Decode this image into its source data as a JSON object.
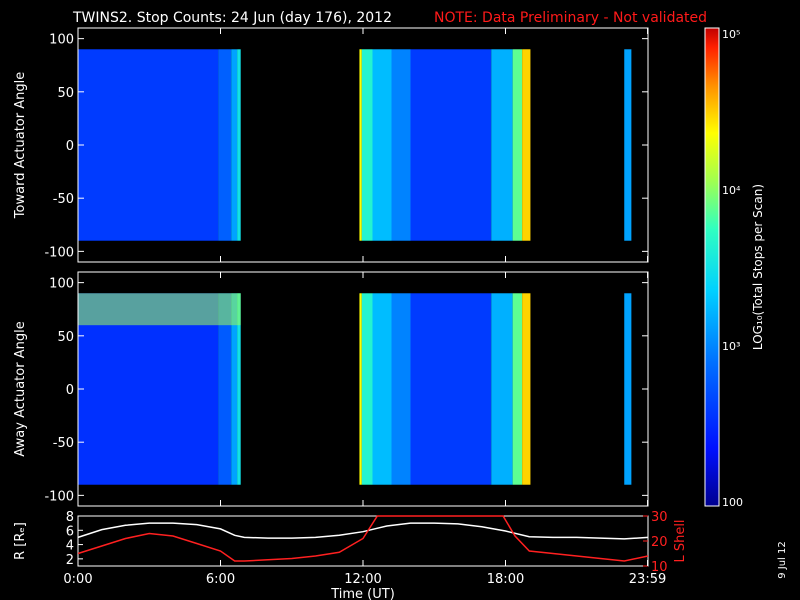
{
  "title": {
    "main": "TWINS2. Stop Counts: 24 Jun (day 176), 2012",
    "note": "NOTE: Data Preliminary - Not validated",
    "note_color": "#ff1a1a"
  },
  "date_stamp": "9 Jul 12",
  "colors": {
    "axis": "#ffffff",
    "r_line": "#ffffff",
    "lshell_line": "#ff2020"
  },
  "chart_data": [
    {
      "type": "heatmap",
      "ylabel": "Toward Actuator Angle",
      "ylim": [
        -110,
        110
      ],
      "yticks": [
        "100",
        "50",
        "0",
        "-50",
        "-100"
      ],
      "ytick_values": [
        100,
        50,
        0,
        -50,
        -100
      ],
      "xlim": [
        0,
        24
      ],
      "angle_range": [
        -90,
        90
      ],
      "data_intervals_hours": [
        [
          0,
          6.85
        ],
        [
          11.85,
          19.05
        ],
        [
          23.0,
          23.3
        ]
      ],
      "strips": [
        {
          "start": 0.0,
          "end": 5.9,
          "value": 0.2
        },
        {
          "start": 5.9,
          "end": 6.45,
          "value": 0.27
        },
        {
          "start": 6.45,
          "end": 6.7,
          "value": 0.38
        },
        {
          "start": 6.7,
          "end": 6.85,
          "value": 0.5
        },
        {
          "start": 11.85,
          "end": 11.95,
          "value": 0.78
        },
        {
          "start": 11.95,
          "end": 12.4,
          "value": 0.55
        },
        {
          "start": 12.4,
          "end": 13.2,
          "value": 0.42
        },
        {
          "start": 13.2,
          "end": 14.0,
          "value": 0.33
        },
        {
          "start": 14.0,
          "end": 17.4,
          "value": 0.2
        },
        {
          "start": 17.4,
          "end": 18.3,
          "value": 0.4
        },
        {
          "start": 18.3,
          "end": 18.7,
          "value": 0.62
        },
        {
          "start": 18.7,
          "end": 19.05,
          "value": 0.82
        },
        {
          "start": 23.0,
          "end": 23.3,
          "value": 0.38
        }
      ]
    },
    {
      "type": "heatmap",
      "ylabel": "Away Actuator Angle",
      "ylim": [
        -110,
        110
      ],
      "yticks": [
        "100",
        "50",
        "0",
        "-50",
        "-100"
      ],
      "ytick_values": [
        100,
        50,
        0,
        -50,
        -100
      ],
      "xlim": [
        0,
        24
      ],
      "angle_range": [
        -90,
        90
      ],
      "data_intervals_hours": [
        [
          0,
          6.85
        ],
        [
          11.85,
          19.05
        ],
        [
          23.0,
          23.3
        ]
      ],
      "strips": [
        {
          "start": 0.0,
          "end": 5.9,
          "value": 0.18
        },
        {
          "start": 5.9,
          "end": 6.45,
          "value": 0.26
        },
        {
          "start": 6.45,
          "end": 6.7,
          "value": 0.38
        },
        {
          "start": 6.7,
          "end": 6.85,
          "value": 0.5
        },
        {
          "start": 11.85,
          "end": 11.95,
          "value": 0.78
        },
        {
          "start": 11.95,
          "end": 12.4,
          "value": 0.55
        },
        {
          "start": 12.4,
          "end": 13.2,
          "value": 0.42
        },
        {
          "start": 13.2,
          "end": 14.0,
          "value": 0.33
        },
        {
          "start": 14.0,
          "end": 17.4,
          "value": 0.2
        },
        {
          "start": 17.4,
          "end": 18.3,
          "value": 0.4
        },
        {
          "start": 18.3,
          "end": 18.7,
          "value": 0.62
        },
        {
          "start": 18.7,
          "end": 19.05,
          "value": 0.82
        },
        {
          "start": 23.0,
          "end": 23.3,
          "value": 0.38
        }
      ],
      "high_band": {
        "angle_from": 60,
        "angle_to": 90,
        "hours_from": 0,
        "hours_to": 6.85,
        "value": 0.68
      }
    },
    {
      "type": "line",
      "xlabel": "Time (UT)",
      "xticks": [
        "0:00",
        "6:00",
        "12:00",
        "18:00",
        "23:59"
      ],
      "xtick_values": [
        0,
        6,
        12,
        18,
        23.98
      ],
      "left_axis": {
        "label": "R [Rₑ]",
        "ylim": [
          1,
          8
        ],
        "ticks": [
          "8",
          "6",
          "4",
          "2"
        ],
        "tick_values": [
          8,
          6,
          4,
          2
        ]
      },
      "right_axis": {
        "label": "L Shell",
        "ylim": [
          10,
          30
        ],
        "ticks": [
          "30",
          "20",
          "10"
        ],
        "tick_values": [
          30,
          20,
          10
        ]
      },
      "series": [
        {
          "axis": "left",
          "x": [
            0,
            1,
            2,
            3,
            4,
            5,
            6,
            6.6,
            7,
            8,
            9,
            10,
            11,
            12,
            13,
            14,
            15,
            16,
            17,
            18,
            19,
            20,
            21,
            22,
            23,
            24
          ],
          "y": [
            5.0,
            6.1,
            6.7,
            7.0,
            7.0,
            6.8,
            6.2,
            5.3,
            5.0,
            4.9,
            4.9,
            5.0,
            5.3,
            5.8,
            6.6,
            7.0,
            7.0,
            6.9,
            6.5,
            5.9,
            5.1,
            5.0,
            5.0,
            4.9,
            4.8,
            5.0
          ]
        },
        {
          "axis": "right",
          "x": [
            0,
            1,
            2,
            3,
            4,
            5,
            6,
            6.6,
            7,
            8,
            9,
            10,
            11,
            12,
            12.6,
            17.9,
            18.4,
            19,
            20,
            21,
            22,
            23,
            24
          ],
          "y": [
            15,
            18,
            21,
            23,
            22,
            19,
            16,
            12,
            12,
            12.5,
            13,
            14,
            15.5,
            21,
            30,
            30,
            22,
            16,
            15,
            14,
            13,
            12,
            14
          ]
        }
      ]
    }
  ],
  "colorbar": {
    "label": "LOG₁₀(Total Stops per Scan)",
    "ticks": [
      "10⁵",
      "10⁴",
      "10³",
      "100"
    ]
  }
}
